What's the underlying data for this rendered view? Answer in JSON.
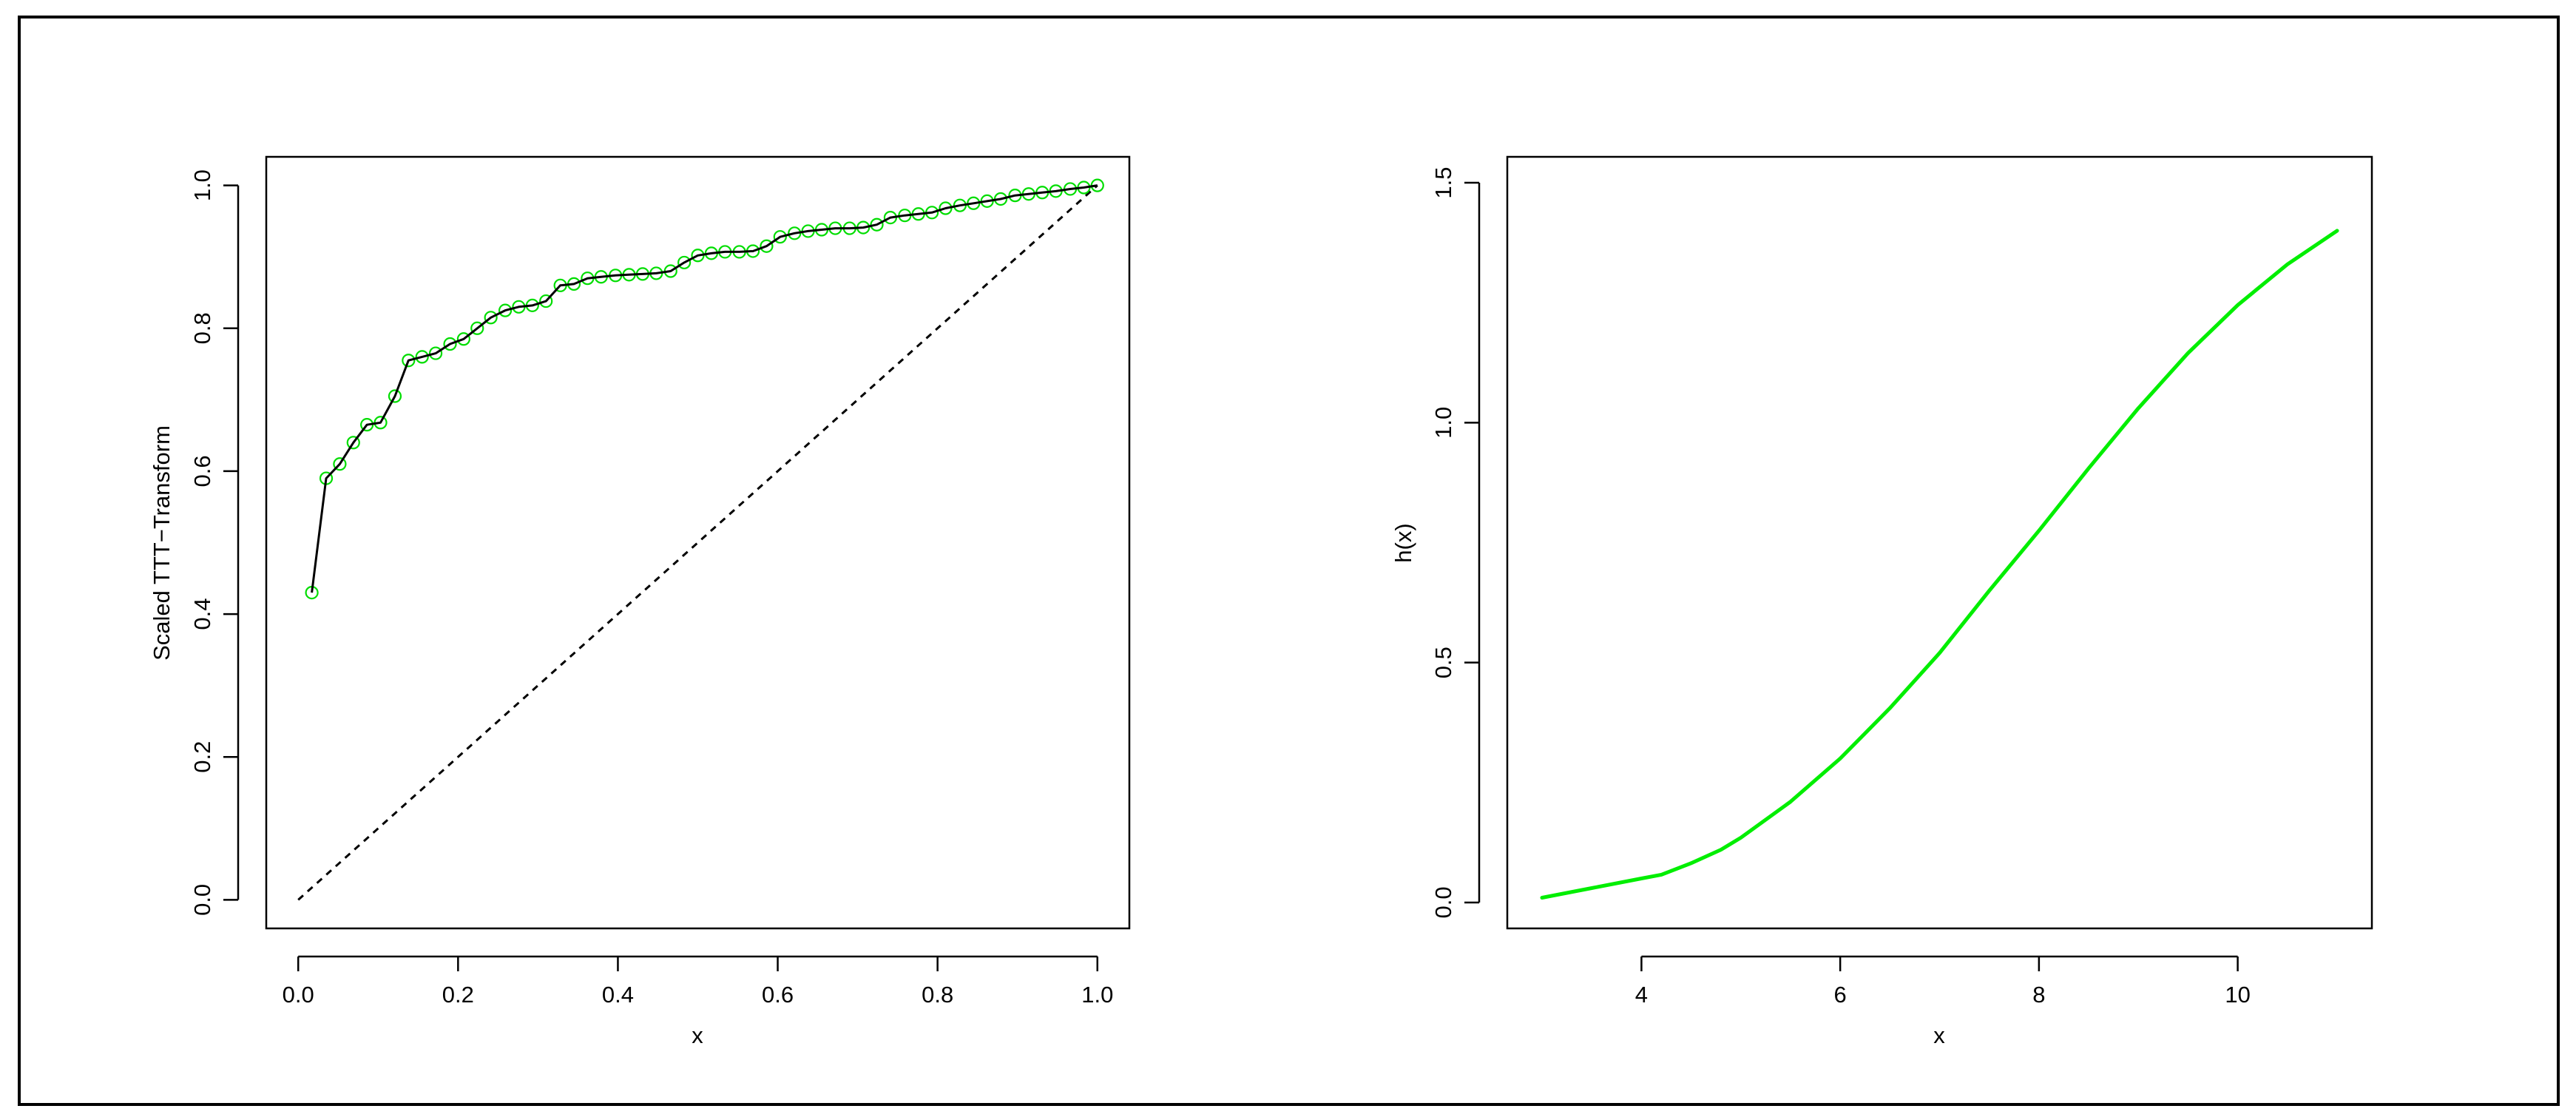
{
  "colors": {
    "background": "#ffffff",
    "frame": "#000000",
    "ttt_points": "#00dd00",
    "ttt_line": "#000000",
    "reference_line": "#000000",
    "hazard_curve": "#00ee00"
  },
  "chart_data": [
    {
      "type": "line",
      "xlabel": "x",
      "ylabel": "Scaled TTT−Transform",
      "xlim": [
        -0.04,
        1.04
      ],
      "ylim": [
        -0.04,
        1.04
      ],
      "grid": false,
      "legend": "none",
      "x_ticks": [
        0,
        0.2,
        0.4,
        0.6,
        0.8,
        1
      ],
      "x_tick_labels": [
        "0.0",
        "0.2",
        "0.4",
        "0.6",
        "0.8",
        "1.0"
      ],
      "y_ticks": [
        0,
        0.2,
        0.4,
        0.6,
        0.8,
        1
      ],
      "y_tick_labels": [
        "0.0",
        "0.2",
        "0.4",
        "0.6",
        "0.8",
        "1.0"
      ],
      "reference_line": {
        "x": [
          0,
          1
        ],
        "y": [
          0,
          1
        ],
        "style": "dashed"
      },
      "series": [
        {
          "style": "points-and-line",
          "x": [
            0.017,
            0.035,
            0.052,
            0.069,
            0.086,
            0.103,
            0.121,
            0.138,
            0.155,
            0.172,
            0.19,
            0.207,
            0.224,
            0.241,
            0.259,
            0.276,
            0.293,
            0.31,
            0.328,
            0.345,
            0.362,
            0.379,
            0.397,
            0.414,
            0.431,
            0.448,
            0.466,
            0.483,
            0.5,
            0.517,
            0.534,
            0.552,
            0.569,
            0.586,
            0.603,
            0.621,
            0.638,
            0.655,
            0.672,
            0.69,
            0.707,
            0.724,
            0.741,
            0.759,
            0.776,
            0.793,
            0.81,
            0.828,
            0.845,
            0.862,
            0.879,
            0.897,
            0.914,
            0.931,
            0.948,
            0.966,
            0.983,
            1.0
          ],
          "y": [
            0.43,
            0.59,
            0.61,
            0.64,
            0.665,
            0.668,
            0.705,
            0.755,
            0.76,
            0.765,
            0.778,
            0.785,
            0.8,
            0.815,
            0.825,
            0.83,
            0.832,
            0.838,
            0.86,
            0.862,
            0.87,
            0.872,
            0.874,
            0.875,
            0.876,
            0.877,
            0.88,
            0.892,
            0.902,
            0.905,
            0.907,
            0.907,
            0.908,
            0.915,
            0.928,
            0.933,
            0.936,
            0.938,
            0.94,
            0.94,
            0.941,
            0.945,
            0.955,
            0.958,
            0.96,
            0.962,
            0.968,
            0.972,
            0.975,
            0.978,
            0.981,
            0.986,
            0.988,
            0.99,
            0.992,
            0.995,
            0.997,
            1.0
          ]
        }
      ]
    },
    {
      "type": "line",
      "xlabel": "x",
      "ylabel": "h(x)",
      "xlim": [
        2.65,
        11.35
      ],
      "ylim": [
        -0.054,
        1.554
      ],
      "grid": false,
      "legend": "none",
      "x_ticks": [
        4,
        6,
        8,
        10
      ],
      "x_tick_labels": [
        "4",
        "6",
        "8",
        "10"
      ],
      "y_ticks": [
        0,
        0.5,
        1,
        1.5
      ],
      "y_tick_labels": [
        "0.0",
        "0.5",
        "1.0",
        "1.5"
      ],
      "series": [
        {
          "style": "line",
          "x": [
            3.0,
            3.5,
            4.0,
            4.2,
            4.5,
            4.8,
            5.0,
            5.5,
            6.0,
            6.5,
            7.0,
            7.5,
            8.0,
            8.5,
            9.0,
            9.5,
            10.0,
            10.5,
            11.0
          ],
          "y": [
            0.01,
            0.03,
            0.05,
            0.058,
            0.082,
            0.11,
            0.135,
            0.21,
            0.3,
            0.405,
            0.52,
            0.65,
            0.775,
            0.905,
            1.03,
            1.145,
            1.245,
            1.33,
            1.4
          ]
        }
      ]
    }
  ]
}
